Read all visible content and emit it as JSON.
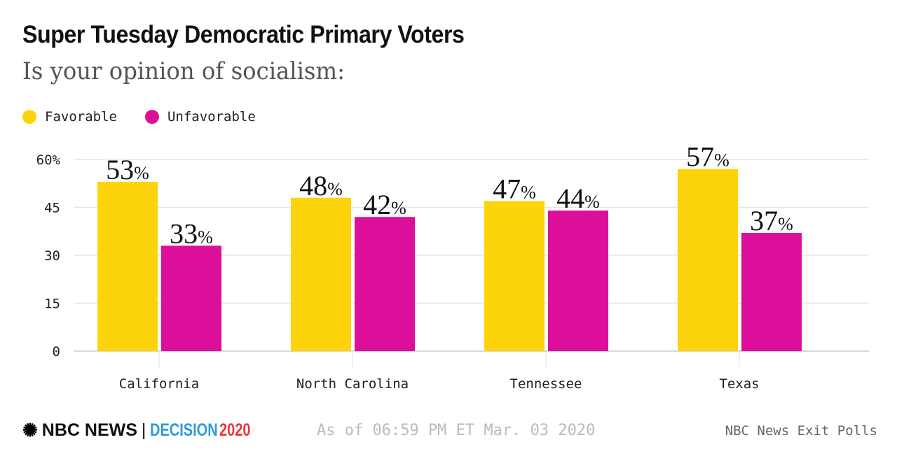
{
  "chart_data": {
    "type": "bar",
    "title": "Super Tuesday Democratic Primary Voters",
    "subtitle": "Is your opinion of socialism:",
    "categories": [
      "California",
      "North Carolina",
      "Tennessee",
      "Texas"
    ],
    "series": [
      {
        "name": "Favorable",
        "color": "#FDD30B",
        "values": [
          53,
          48,
          47,
          57
        ]
      },
      {
        "name": "Unfavorable",
        "color": "#DD0F9A",
        "values": [
          33,
          42,
          44,
          37
        ]
      }
    ],
    "ylim": [
      0,
      60
    ],
    "yticks": [
      0,
      15,
      30,
      45,
      60
    ],
    "ytick_labels": [
      "0",
      "15",
      "30",
      "45",
      "60%"
    ],
    "value_suffix": "%",
    "grid": true,
    "legend": "top-left"
  },
  "footer": {
    "logo_nbc": "NBC NEWS",
    "logo_decision": "DECISION",
    "logo_year": "2020",
    "as_of": "As of 06:59 PM ET Mar. 03 2020",
    "source": "NBC News Exit Polls"
  }
}
